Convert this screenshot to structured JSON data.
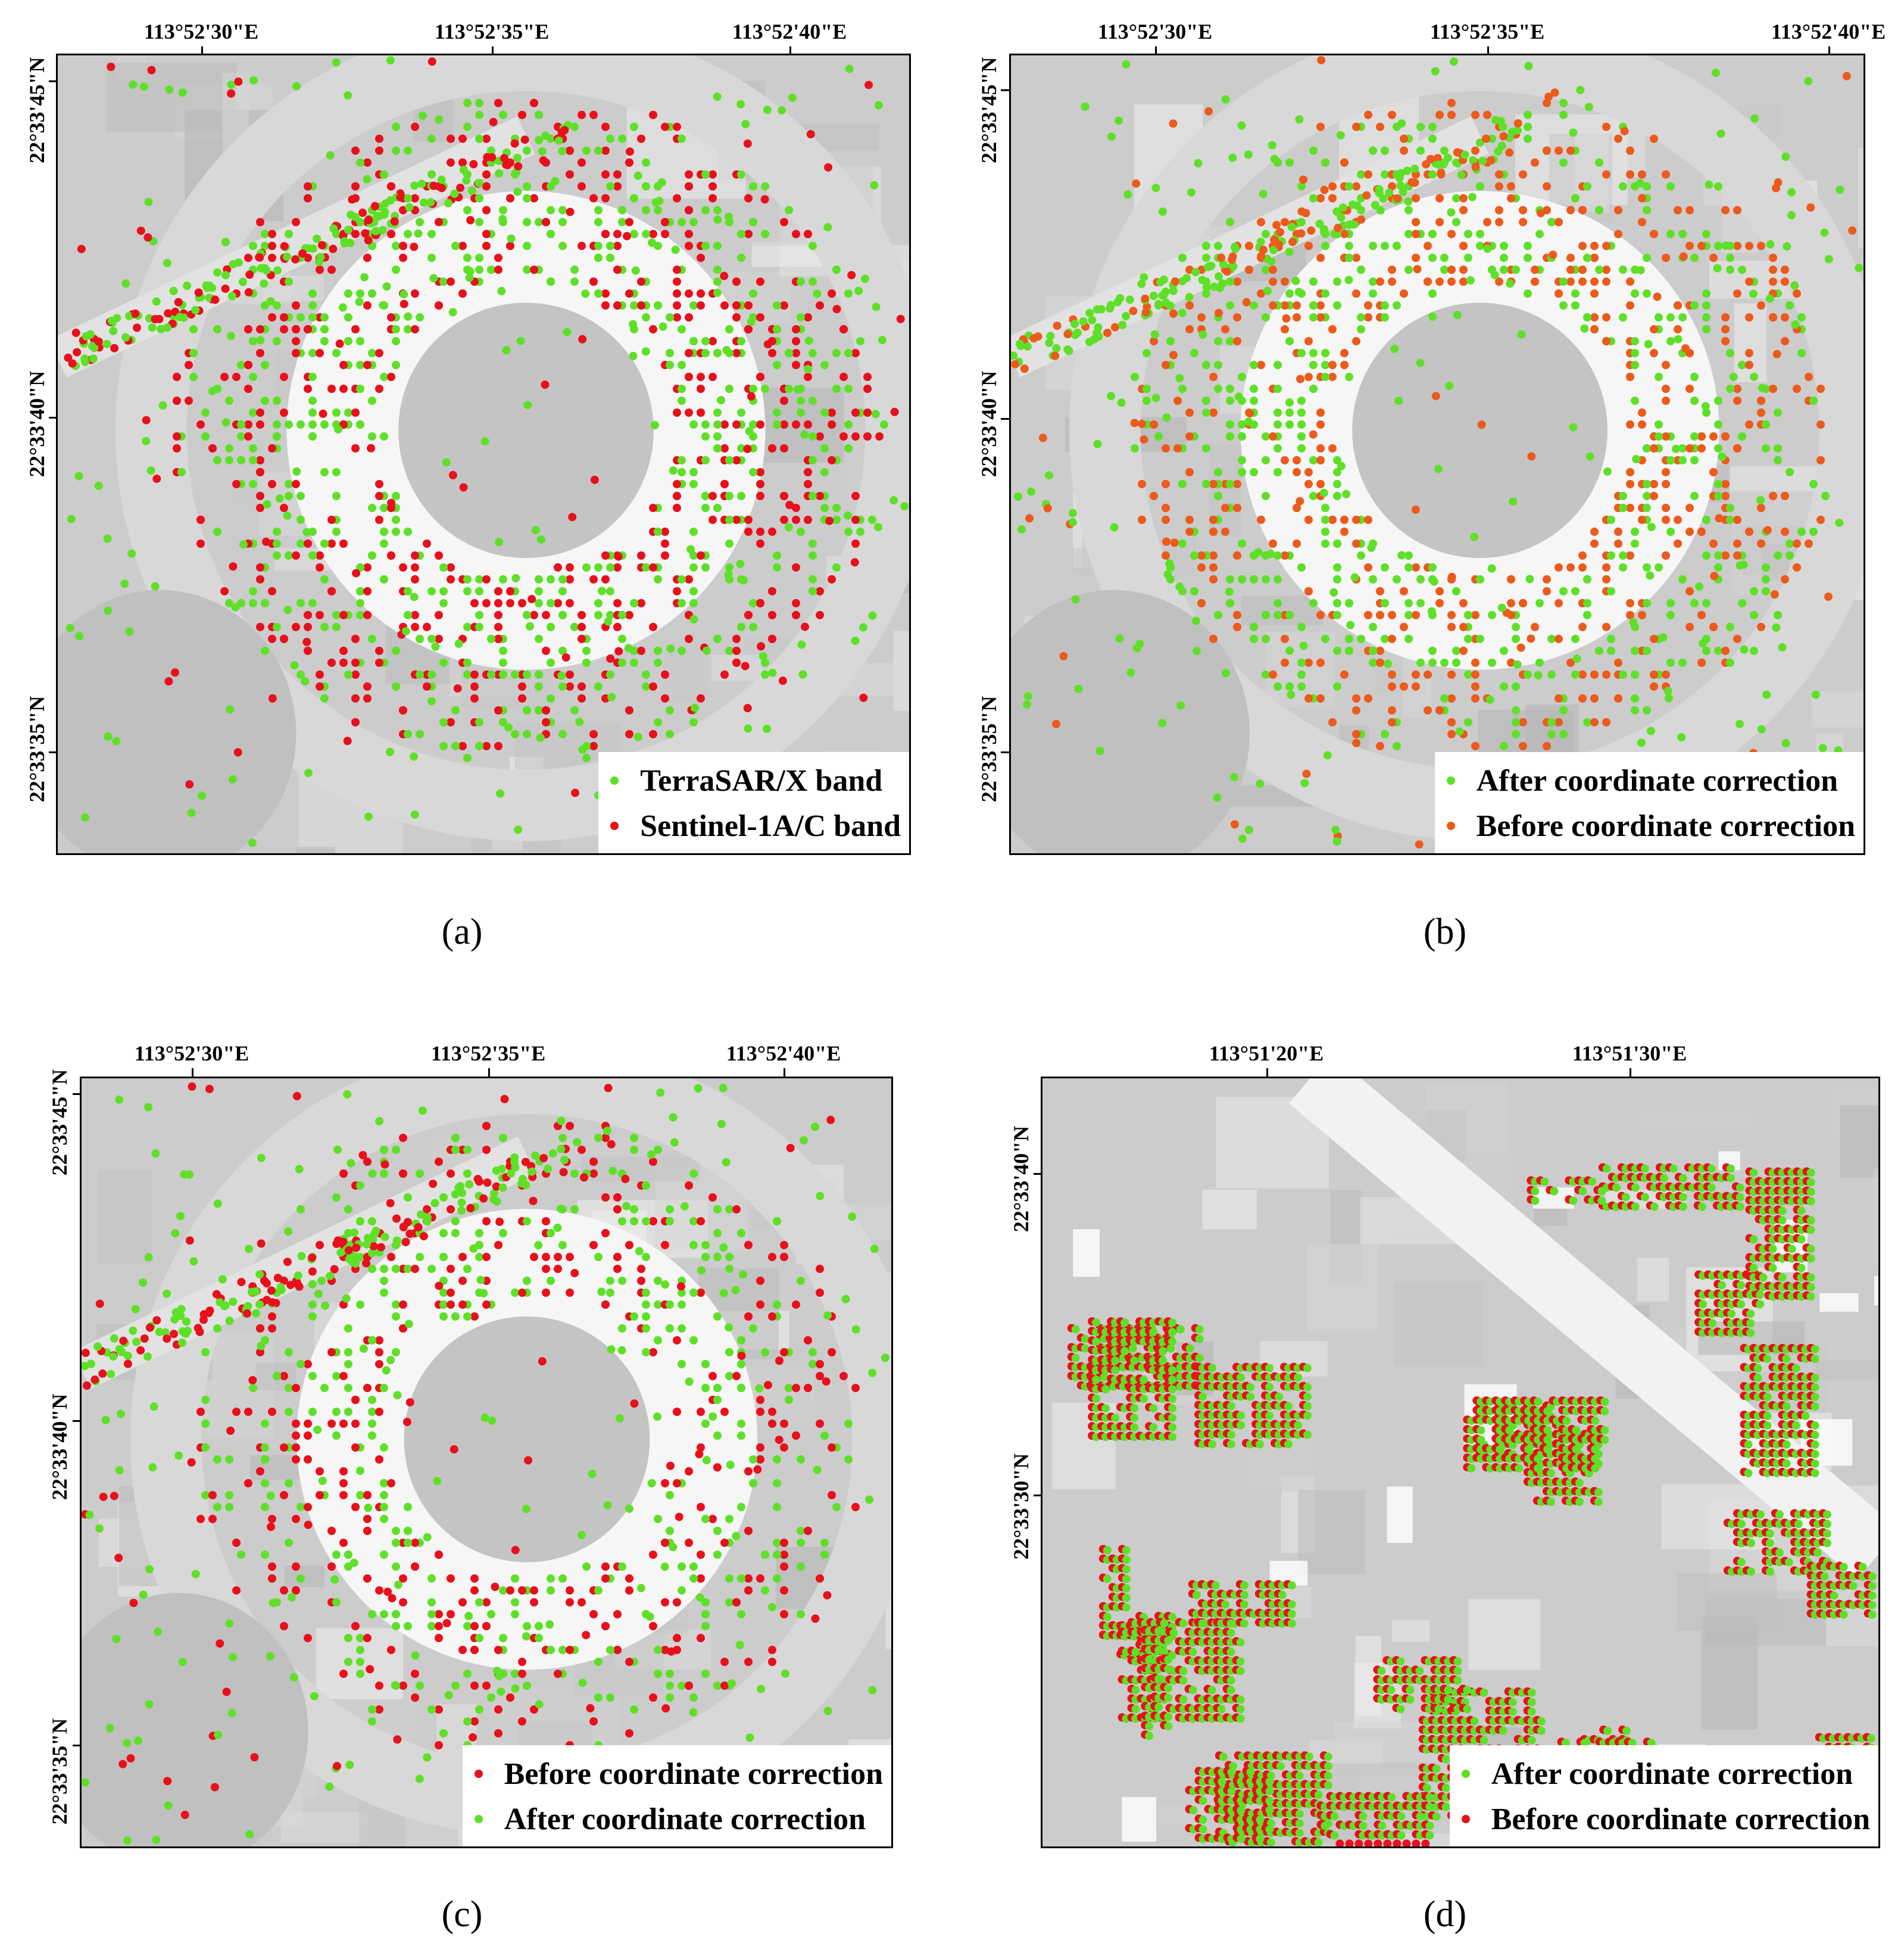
{
  "colors": {
    "green": "#5fe028",
    "red": "#e8101c",
    "orange": "#ec5a1c"
  },
  "panels": [
    {
      "caption": "(a)",
      "lon_ticks": [
        "113°52'30\"E",
        "113°52'35\"E",
        "113°52'40\"E"
      ],
      "lat_ticks": [
        "22°33'45\"N",
        "22°33'40\"N",
        "22°33'35\"N"
      ],
      "legend": [
        {
          "label": "TerraSAR/X band",
          "color": "green"
        },
        {
          "label": "Sentinel-1A/C band",
          "color": "red"
        }
      ]
    },
    {
      "caption": "(b)",
      "lon_ticks": [
        "113°52'30\"E",
        "113°52'35\"E",
        "113°52'40\"E"
      ],
      "lat_ticks": [
        "22°33'45\"N",
        "22°33'40\"N",
        "22°33'35\"N"
      ],
      "legend": [
        {
          "label": "After coordinate correction",
          "color": "green"
        },
        {
          "label": "Before coordinate correction",
          "color": "orange"
        }
      ]
    },
    {
      "caption": "(c)",
      "lon_ticks": [
        "113°52'30\"E",
        "113°52'35\"E",
        "113°52'40\"E"
      ],
      "lat_ticks": [
        "22°33'45\"N",
        "22°33'40\"N",
        "22°33'35\"N"
      ],
      "legend": [
        {
          "label": "Before coordinate correction",
          "color": "red"
        },
        {
          "label": "After coordinate correction",
          "color": "green"
        }
      ]
    },
    {
      "caption": "(d)",
      "lon_ticks": [
        "113°51'20\"E",
        "113°51'30\"E"
      ],
      "lat_ticks": [
        "22°33'40\"N",
        "22°33'30\"N"
      ],
      "legend": [
        {
          "label": "After coordinate correction",
          "color": "green"
        },
        {
          "label": "Before coordinate correction",
          "color": "red"
        }
      ]
    }
  ]
}
